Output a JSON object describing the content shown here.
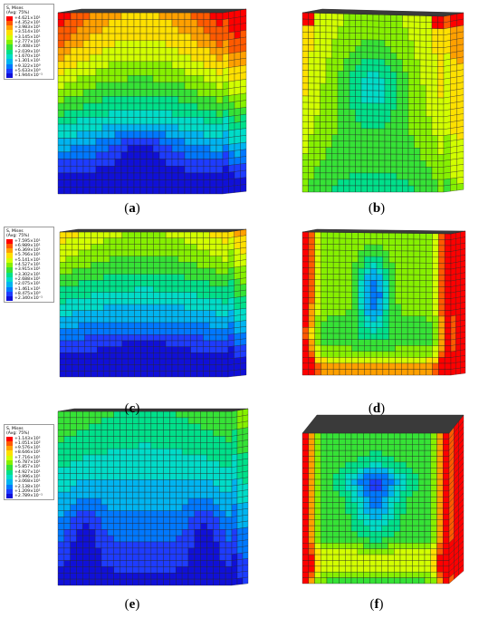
{
  "legends": [
    {
      "title": "S, Mises",
      "subtitle": "(Avg: 75%)",
      "values": [
        "+4.621×10¹",
        "+4.352×10¹",
        "+3.983×10¹",
        "+3.514×10¹",
        "+3.145×10¹",
        "+2.777×10¹",
        "+2.408×10¹",
        "+2.039×10¹",
        "+1.670×10¹",
        "+1.301×10¹",
        "+9.322×10⁰",
        "+5.633×10⁰",
        "+1.944×10⁻¹"
      ]
    },
    {
      "title": "S, Mises",
      "subtitle": "(Avg: 75%)",
      "values": [
        "+7.595×10¹",
        "+6.989×10¹",
        "+6.369×10¹",
        "+5.766×10¹",
        "+5.141×10¹",
        "+4.527×10¹",
        "+3.915×10¹",
        "+3.302×10¹",
        "+2.688×10¹",
        "+2.075×10¹",
        "+1.461×10¹",
        "+8.475×10⁰",
        "+2.340×10⁻¹"
      ]
    },
    {
      "title": "S, Mises",
      "subtitle": "(Avg: 75%)",
      "values": [
        "+1.143×10²",
        "+1.051×10²",
        "+9.576×10¹",
        "+8.646×10¹",
        "+7.716×10¹",
        "+6.787×10¹",
        "+5.857×10¹",
        "+4.927×10¹",
        "+3.996×10¹",
        "+3.068×10¹",
        "+2.138×10¹",
        "+1.209×10¹",
        "+2.789×10⁻¹"
      ]
    }
  ],
  "legend_colors": [
    "#ff0000",
    "#ff5a00",
    "#ffa000",
    "#ffe000",
    "#d2ff00",
    "#86f000",
    "#36e236",
    "#00e08a",
    "#00dcc8",
    "#00b4f0",
    "#0078ff",
    "#1e3cff",
    "#1010d8"
  ],
  "captions": [
    "a",
    "b",
    "c",
    "d",
    "e",
    "f"
  ],
  "colors": {
    "grid_line": "#222222",
    "top_face": "#3a3a3a"
  }
}
